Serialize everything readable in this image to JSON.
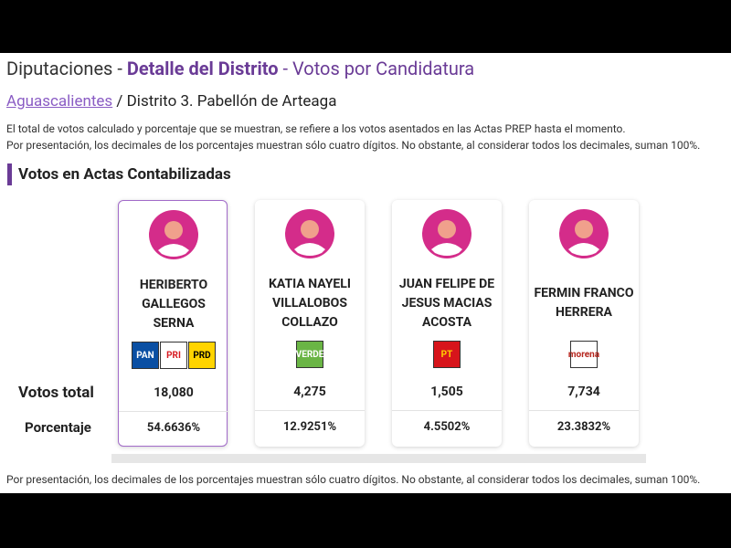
{
  "header": {
    "title_part1": "Diputaciones -",
    "title_part2": "Detalle del Distrito",
    "title_part3": "- Votos por Candidatura"
  },
  "breadcrumb": {
    "link": "Aguascalientes",
    "rest": "/ Distrito 3.  Pabellón de Arteaga"
  },
  "notes": [
    "El total de votos calculado y porcentaje que se muestran, se refiere a los votos asentados en las Actas PREP hasta el momento.",
    "Por presentación, los decimales de los porcentajes muestran sólo cuatro dígitos. No obstante, al considerar todos los decimales, suman 100%."
  ],
  "section_title": "Votos en Actas Contabilizadas",
  "row_labels": {
    "votes": "Votos total",
    "percent": "Porcentaje"
  },
  "candidates": [
    {
      "name": "HERIBERTO GALLEGOS SERNA",
      "parties": [
        {
          "label": "PAN",
          "bg": "#0a4fa3",
          "fg": "#ffffff"
        },
        {
          "label": "PRI",
          "bg": "#ffffff",
          "fg": "#d71920"
        },
        {
          "label": "PRD",
          "bg": "#ffd400",
          "fg": "#000000"
        }
      ],
      "votes": "18,080",
      "percent": "54.6636%",
      "selected": true
    },
    {
      "name": "KATIA NAYELI VILLALOBOS COLLAZO",
      "parties": [
        {
          "label": "VERDE",
          "bg": "#6ab545",
          "fg": "#ffffff"
        }
      ],
      "votes": "4,275",
      "percent": "12.9251%",
      "selected": false
    },
    {
      "name": "JUAN FELIPE DE JESUS MACIAS ACOSTA",
      "parties": [
        {
          "label": "PT",
          "bg": "#d7141b",
          "fg": "#ffd200"
        }
      ],
      "votes": "1,505",
      "percent": "4.5502%",
      "selected": false
    },
    {
      "name": "FERMIN FRANCO HERRERA",
      "parties": [
        {
          "label": "morena",
          "bg": "#ffffff",
          "fg": "#b5261e"
        }
      ],
      "votes": "7,734",
      "percent": "23.3832%",
      "selected": false
    }
  ],
  "footer_note": "Por presentación, los decimales de los porcentajes muestran sólo cuatro dígitos. No obstante, al considerar todos los decimales, suman 100%."
}
